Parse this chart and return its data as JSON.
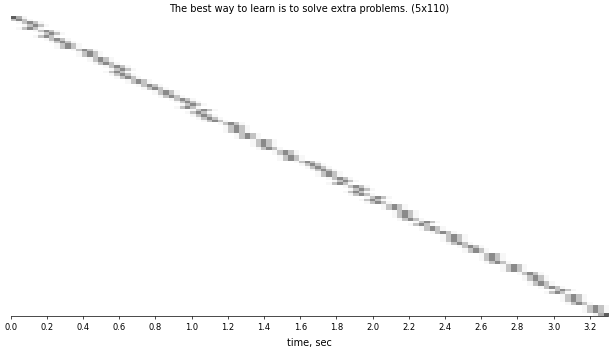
{
  "title": "The best way to learn is to solve extra problems. (5x110)",
  "xlabel": "time, sec",
  "n_frames": 110,
  "frame_duration": 0.03,
  "title_fontsize": 7,
  "label_fontsize": 7,
  "tick_fontsize": 6,
  "xticks": [
    0.0,
    0.2,
    0.4,
    0.6,
    0.8,
    1.0,
    1.2,
    1.4,
    1.6,
    1.8,
    2.0,
    2.2,
    2.4,
    2.6,
    2.8,
    3.0,
    3.2
  ],
  "background_color": "#ffffff",
  "figsize": [
    6.12,
    3.52
  ],
  "dpi": 100
}
